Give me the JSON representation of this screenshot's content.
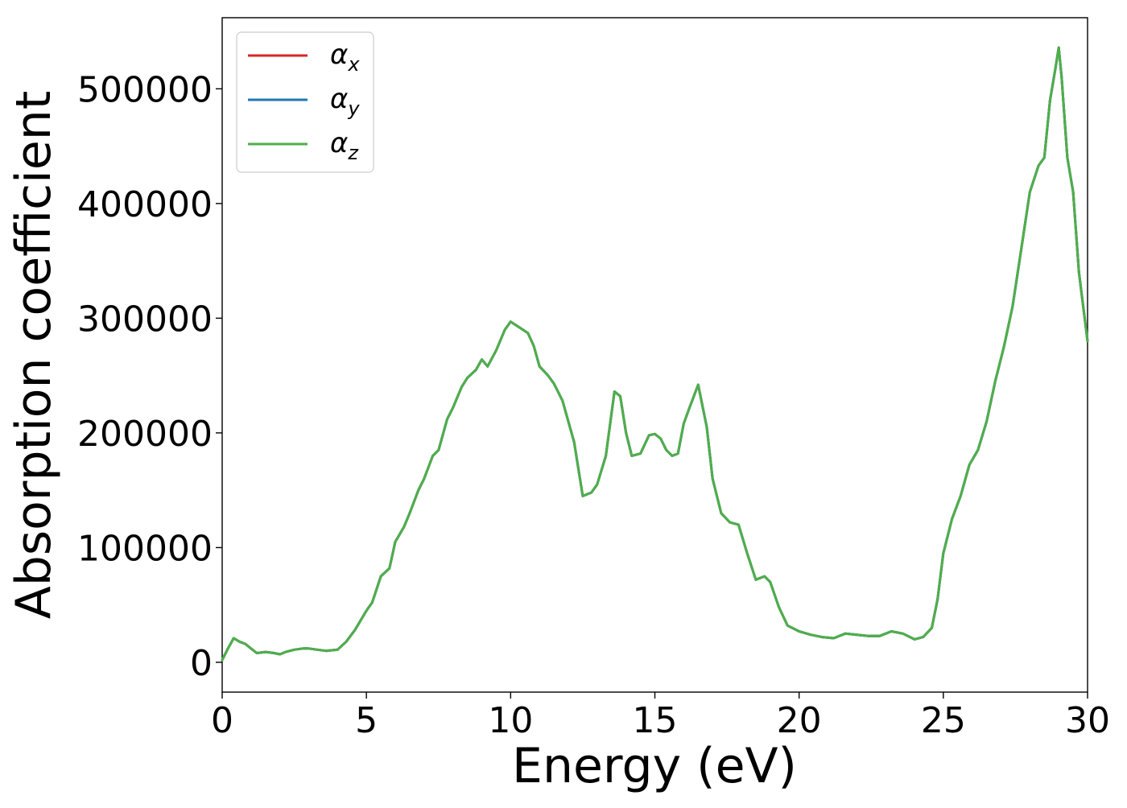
{
  "chart_data": {
    "type": "line",
    "title": "",
    "xlabel": "Energy (eV)",
    "ylabel": "Absorption coefficient",
    "xlim": [
      0,
      30
    ],
    "ylim": [
      -26000,
      562000
    ],
    "xticks": [
      0,
      5,
      10,
      15,
      20,
      25,
      30
    ],
    "yticks": [
      0,
      100000,
      200000,
      300000,
      400000,
      500000
    ],
    "grid": false,
    "legend_position": "upper left",
    "x": [
      0.0,
      0.2,
      0.4,
      0.6,
      0.8,
      1.0,
      1.2,
      1.5,
      1.8,
      2.0,
      2.2,
      2.5,
      2.8,
      3.0,
      3.3,
      3.6,
      4.0,
      4.3,
      4.6,
      5.0,
      5.2,
      5.5,
      5.8,
      6.0,
      6.3,
      6.5,
      6.8,
      7.0,
      7.3,
      7.5,
      7.8,
      8.0,
      8.3,
      8.5,
      8.8,
      9.0,
      9.2,
      9.5,
      9.8,
      10.0,
      10.3,
      10.6,
      10.8,
      11.0,
      11.3,
      11.5,
      11.8,
      12.0,
      12.2,
      12.5,
      12.8,
      13.0,
      13.3,
      13.6,
      13.8,
      14.0,
      14.2,
      14.5,
      14.8,
      15.0,
      15.2,
      15.4,
      15.6,
      15.8,
      16.0,
      16.2,
      16.5,
      16.8,
      17.0,
      17.3,
      17.6,
      17.9,
      18.2,
      18.5,
      18.8,
      19.0,
      19.3,
      19.6,
      20.0,
      20.4,
      20.8,
      21.2,
      21.6,
      22.0,
      22.4,
      22.8,
      23.2,
      23.6,
      24.0,
      24.3,
      24.6,
      24.8,
      25.0,
      25.3,
      25.6,
      25.9,
      26.2,
      26.5,
      26.8,
      27.1,
      27.4,
      27.7,
      28.0,
      28.3,
      28.5,
      28.7,
      28.9,
      29.0,
      29.1,
      29.3,
      29.5,
      29.7,
      30.0
    ],
    "series": [
      {
        "name": "α_x",
        "color": "#d62728",
        "values": [
          2000,
          12000,
          21000,
          18000,
          16000,
          12000,
          8000,
          9000,
          8000,
          7000,
          9000,
          11000,
          12000,
          12000,
          11000,
          10000,
          11000,
          18000,
          28000,
          45000,
          52000,
          75000,
          82000,
          105000,
          118000,
          130000,
          150000,
          160000,
          180000,
          185000,
          212000,
          222000,
          240000,
          248000,
          255000,
          264000,
          258000,
          272000,
          290000,
          297000,
          292000,
          287000,
          276000,
          258000,
          250000,
          243000,
          228000,
          210000,
          192000,
          145000,
          148000,
          155000,
          180000,
          236000,
          232000,
          200000,
          180000,
          182000,
          198000,
          199000,
          195000,
          185000,
          180000,
          182000,
          208000,
          222000,
          242000,
          205000,
          160000,
          130000,
          122000,
          120000,
          95000,
          72000,
          75000,
          70000,
          48000,
          32000,
          27000,
          24000,
          22000,
          21000,
          25000,
          24000,
          23000,
          23000,
          27000,
          25000,
          20000,
          22000,
          30000,
          55000,
          95000,
          125000,
          145000,
          172000,
          185000,
          210000,
          245000,
          275000,
          310000,
          360000,
          410000,
          433000,
          440000,
          490000,
          520000,
          536000,
          510000,
          440000,
          410000,
          340000,
          280000
        ]
      },
      {
        "name": "α_y",
        "color": "#1f77b4",
        "values": [
          2000,
          12000,
          21000,
          18000,
          16000,
          12000,
          8000,
          9000,
          8000,
          7000,
          9000,
          11000,
          12000,
          12000,
          11000,
          10000,
          11000,
          18000,
          28000,
          45000,
          52000,
          75000,
          82000,
          105000,
          118000,
          130000,
          150000,
          160000,
          180000,
          185000,
          212000,
          222000,
          240000,
          248000,
          255000,
          264000,
          258000,
          272000,
          290000,
          297000,
          292000,
          287000,
          276000,
          258000,
          250000,
          243000,
          228000,
          210000,
          192000,
          145000,
          148000,
          155000,
          180000,
          236000,
          232000,
          200000,
          180000,
          182000,
          198000,
          199000,
          195000,
          185000,
          180000,
          182000,
          208000,
          222000,
          242000,
          205000,
          160000,
          130000,
          122000,
          120000,
          95000,
          72000,
          75000,
          70000,
          48000,
          32000,
          27000,
          24000,
          22000,
          21000,
          25000,
          24000,
          23000,
          23000,
          27000,
          25000,
          20000,
          22000,
          30000,
          55000,
          95000,
          125000,
          145000,
          172000,
          185000,
          210000,
          245000,
          275000,
          310000,
          360000,
          410000,
          433000,
          440000,
          490000,
          520000,
          536000,
          510000,
          440000,
          410000,
          340000,
          280000
        ]
      },
      {
        "name": "α_z",
        "color": "#4daf4a",
        "values": [
          2000,
          12000,
          21000,
          18000,
          16000,
          12000,
          8000,
          9000,
          8000,
          7000,
          9000,
          11000,
          12000,
          12000,
          11000,
          10000,
          11000,
          18000,
          28000,
          45000,
          52000,
          75000,
          82000,
          105000,
          118000,
          130000,
          150000,
          160000,
          180000,
          185000,
          212000,
          222000,
          240000,
          248000,
          255000,
          264000,
          258000,
          272000,
          290000,
          297000,
          292000,
          287000,
          276000,
          258000,
          250000,
          243000,
          228000,
          210000,
          192000,
          145000,
          148000,
          155000,
          180000,
          236000,
          232000,
          200000,
          180000,
          182000,
          198000,
          199000,
          195000,
          185000,
          180000,
          182000,
          208000,
          222000,
          242000,
          205000,
          160000,
          130000,
          122000,
          120000,
          95000,
          72000,
          75000,
          70000,
          48000,
          32000,
          27000,
          24000,
          22000,
          21000,
          25000,
          24000,
          23000,
          23000,
          27000,
          25000,
          20000,
          22000,
          30000,
          55000,
          95000,
          125000,
          145000,
          172000,
          185000,
          210000,
          245000,
          275000,
          310000,
          360000,
          410000,
          433000,
          440000,
          490000,
          520000,
          536000,
          510000,
          440000,
          410000,
          340000,
          280000
        ]
      }
    ],
    "legend": [
      {
        "base": "α",
        "sub": "x"
      },
      {
        "base": "α",
        "sub": "y"
      },
      {
        "base": "α",
        "sub": "z"
      }
    ]
  }
}
